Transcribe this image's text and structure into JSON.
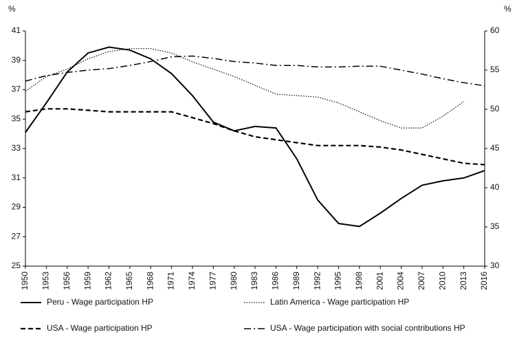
{
  "chart_data": {
    "type": "line",
    "ylabel": "%",
    "y2label": "%",
    "x": [
      1950,
      1953,
      1956,
      1959,
      1962,
      1965,
      1968,
      1971,
      1974,
      1977,
      1980,
      1983,
      1986,
      1989,
      1992,
      1995,
      1998,
      2001,
      2004,
      2007,
      2010,
      2013,
      2016
    ],
    "xlim": [
      1950,
      2016
    ],
    "xticks": [
      1950,
      1953,
      1956,
      1959,
      1962,
      1965,
      1968,
      1971,
      1974,
      1977,
      1980,
      1983,
      1986,
      1989,
      1992,
      1995,
      1998,
      2001,
      2004,
      2007,
      2010,
      2013,
      2016
    ],
    "ylim": [
      25,
      41
    ],
    "yticks": [
      25,
      27,
      29,
      31,
      33,
      35,
      37,
      39,
      41
    ],
    "y2lim": [
      30,
      60
    ],
    "y2ticks": [
      30,
      35,
      40,
      45,
      50,
      55,
      60
    ],
    "series": [
      {
        "name": "Peru - Wage participation HP",
        "color": "#000000",
        "style": "solid",
        "values": [
          34.1,
          36.1,
          38.2,
          39.5,
          39.9,
          39.7,
          39.1,
          38.1,
          36.6,
          34.8,
          34.2,
          34.5,
          34.4,
          32.3,
          29.5,
          27.9,
          27.7,
          28.6,
          29.6,
          30.5,
          30.8,
          31.0,
          31.5
        ]
      },
      {
        "name": "Latin America - Wage participation HP",
        "color": "#000000",
        "style": "dotted",
        "values": [
          36.9,
          37.9,
          38.4,
          39.1,
          39.6,
          39.8,
          39.8,
          39.5,
          38.9,
          38.4,
          37.9,
          37.3,
          36.7,
          36.6,
          36.5,
          36.1,
          35.5,
          34.9,
          34.4,
          34.4,
          35.2,
          36.2,
          null
        ]
      },
      {
        "name": "USA - Wage participation HP",
        "color": "#000000",
        "style": "dashed",
        "values": [
          35.5,
          35.7,
          35.7,
          35.6,
          35.5,
          35.5,
          35.5,
          35.5,
          35.1,
          34.7,
          34.2,
          33.8,
          33.6,
          33.4,
          33.2,
          33.2,
          33.2,
          33.1,
          32.9,
          32.6,
          32.3,
          32.0,
          31.9
        ]
      },
      {
        "name": "USA - Wage participation with social contributions HP",
        "color": "#000000",
        "style": "dashdot",
        "axis": "y2",
        "values": [
          53.6,
          54.3,
          54.7,
          55.0,
          55.2,
          55.6,
          56.1,
          56.7,
          56.8,
          56.5,
          56.1,
          55.9,
          55.6,
          55.6,
          55.4,
          55.4,
          55.5,
          55.5,
          55.0,
          54.5,
          53.9,
          53.4,
          53.0
        ]
      }
    ]
  }
}
